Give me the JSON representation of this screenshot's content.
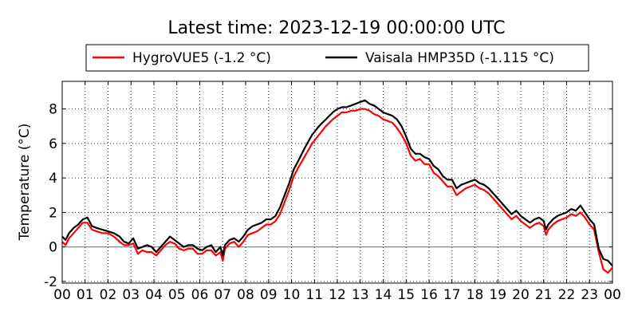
{
  "chart_data": {
    "type": "line",
    "title": "Latest time: 2023-12-19 00:00:00 UTC",
    "xlabel": "",
    "ylabel": "Temperature (°C)",
    "xlim": [
      0,
      24
    ],
    "ylim": [
      -2.1,
      9.6
    ],
    "yticks": [
      -2,
      0,
      2,
      4,
      6,
      8
    ],
    "xtick_labels": [
      "00",
      "01",
      "02",
      "03",
      "04",
      "05",
      "06",
      "07",
      "08",
      "09",
      "10",
      "11",
      "12",
      "13",
      "14",
      "15",
      "16",
      "17",
      "18",
      "19",
      "20",
      "21",
      "22",
      "23",
      "00"
    ],
    "grid": true,
    "zero_line": true,
    "legend_position": "top-center",
    "series": [
      {
        "name": "HygroVUE5 (-1.2 °C)",
        "color": "#ff0000",
        "x": [
          0,
          0.15,
          0.3,
          0.5,
          0.7,
          0.9,
          1.1,
          1.3,
          1.5,
          1.75,
          2.0,
          2.25,
          2.5,
          2.7,
          2.9,
          3.1,
          3.3,
          3.5,
          3.7,
          3.9,
          4.1,
          4.3,
          4.5,
          4.7,
          4.9,
          5.1,
          5.3,
          5.5,
          5.7,
          5.9,
          6.1,
          6.3,
          6.5,
          6.7,
          6.9,
          7.0,
          7.1,
          7.3,
          7.5,
          7.7,
          7.9,
          8.1,
          8.3,
          8.5,
          8.7,
          8.9,
          9.1,
          9.3,
          9.5,
          9.7,
          9.9,
          10.1,
          10.3,
          10.6,
          10.9,
          11.2,
          11.5,
          11.8,
          12.0,
          12.2,
          12.4,
          12.6,
          12.8,
          13.0,
          13.2,
          13.4,
          13.6,
          13.8,
          14.0,
          14.2,
          14.4,
          14.6,
          14.8,
          15.0,
          15.2,
          15.4,
          15.6,
          15.8,
          16.0,
          16.2,
          16.4,
          16.6,
          16.8,
          17.0,
          17.2,
          17.4,
          17.6,
          17.8,
          18.0,
          18.2,
          18.4,
          18.6,
          18.8,
          19.0,
          19.2,
          19.4,
          19.6,
          19.8,
          20.0,
          20.2,
          20.4,
          20.6,
          20.8,
          21.0,
          21.1,
          21.2,
          21.4,
          21.6,
          21.8,
          22.0,
          22.2,
          22.4,
          22.6,
          22.8,
          23.0,
          23.2,
          23.4,
          23.6,
          23.8,
          24.0
        ],
        "values": [
          0.3,
          0.1,
          0.5,
          0.8,
          1.1,
          1.4,
          1.4,
          1.0,
          0.9,
          0.8,
          0.8,
          0.6,
          0.3,
          0.1,
          0.1,
          0.2,
          -0.4,
          -0.2,
          -0.3,
          -0.3,
          -0.5,
          -0.2,
          0.1,
          0.3,
          0.2,
          -0.1,
          -0.2,
          -0.1,
          -0.1,
          -0.4,
          -0.4,
          -0.2,
          -0.2,
          -0.5,
          -0.3,
          -0.8,
          -0.1,
          0.2,
          0.3,
          0.0,
          0.3,
          0.7,
          0.8,
          0.9,
          1.1,
          1.3,
          1.3,
          1.5,
          1.9,
          2.6,
          3.3,
          4.1,
          4.6,
          5.3,
          6.0,
          6.5,
          7.0,
          7.4,
          7.6,
          7.8,
          7.8,
          7.9,
          7.9,
          8.0,
          8.0,
          7.9,
          7.7,
          7.6,
          7.4,
          7.3,
          7.2,
          6.9,
          6.5,
          6.0,
          5.3,
          5.0,
          5.1,
          4.8,
          4.8,
          4.3,
          4.1,
          3.8,
          3.5,
          3.5,
          3.0,
          3.2,
          3.4,
          3.5,
          3.6,
          3.4,
          3.3,
          3.1,
          2.8,
          2.5,
          2.2,
          1.9,
          1.6,
          1.8,
          1.5,
          1.3,
          1.1,
          1.3,
          1.4,
          1.2,
          0.7,
          1.0,
          1.3,
          1.5,
          1.6,
          1.7,
          1.9,
          1.8,
          2.0,
          1.7,
          1.3,
          1.0,
          -0.3,
          -1.3,
          -1.5,
          -1.2
        ]
      },
      {
        "name": "Vaisala HMP35D (-1.115 °C)",
        "color": "#000000",
        "x": [
          0,
          0.15,
          0.3,
          0.5,
          0.7,
          0.9,
          1.1,
          1.3,
          1.5,
          1.75,
          2.0,
          2.25,
          2.5,
          2.7,
          2.9,
          3.1,
          3.3,
          3.5,
          3.7,
          3.9,
          4.1,
          4.3,
          4.5,
          4.7,
          4.9,
          5.1,
          5.3,
          5.5,
          5.7,
          5.9,
          6.1,
          6.3,
          6.5,
          6.7,
          6.9,
          7.0,
          7.1,
          7.3,
          7.5,
          7.7,
          7.9,
          8.1,
          8.3,
          8.5,
          8.7,
          8.9,
          9.1,
          9.3,
          9.5,
          9.7,
          9.9,
          10.1,
          10.3,
          10.6,
          10.9,
          11.2,
          11.5,
          11.8,
          12.0,
          12.2,
          12.4,
          12.6,
          12.8,
          13.0,
          13.2,
          13.4,
          13.6,
          13.8,
          14.0,
          14.2,
          14.4,
          14.6,
          14.8,
          15.0,
          15.2,
          15.4,
          15.6,
          15.8,
          16.0,
          16.2,
          16.4,
          16.6,
          16.8,
          17.0,
          17.2,
          17.4,
          17.6,
          17.8,
          18.0,
          18.2,
          18.4,
          18.6,
          18.8,
          19.0,
          19.2,
          19.4,
          19.6,
          19.8,
          20.0,
          20.2,
          20.4,
          20.6,
          20.8,
          21.0,
          21.1,
          21.2,
          21.4,
          21.6,
          21.8,
          22.0,
          22.2,
          22.4,
          22.6,
          22.8,
          23.0,
          23.2,
          23.4,
          23.6,
          23.8,
          24.0
        ],
        "values": [
          0.6,
          0.4,
          0.8,
          1.1,
          1.3,
          1.6,
          1.7,
          1.2,
          1.1,
          1.0,
          0.9,
          0.8,
          0.6,
          0.3,
          0.2,
          0.5,
          -0.1,
          0.0,
          0.1,
          0.0,
          -0.3,
          0.0,
          0.3,
          0.6,
          0.4,
          0.2,
          0.0,
          0.1,
          0.1,
          -0.1,
          -0.2,
          0.0,
          0.1,
          -0.3,
          0.0,
          -0.5,
          0.1,
          0.4,
          0.5,
          0.3,
          0.6,
          1.0,
          1.2,
          1.3,
          1.4,
          1.6,
          1.6,
          1.8,
          2.3,
          3.0,
          3.7,
          4.5,
          5.0,
          5.8,
          6.5,
          7.0,
          7.4,
          7.8,
          8.0,
          8.1,
          8.1,
          8.2,
          8.3,
          8.4,
          8.5,
          8.3,
          8.2,
          8.0,
          7.8,
          7.7,
          7.6,
          7.4,
          7.0,
          6.4,
          5.7,
          5.4,
          5.4,
          5.2,
          5.1,
          4.7,
          4.5,
          4.1,
          3.9,
          3.9,
          3.4,
          3.6,
          3.7,
          3.8,
          3.9,
          3.7,
          3.6,
          3.4,
          3.1,
          2.8,
          2.5,
          2.2,
          1.9,
          2.1,
          1.8,
          1.6,
          1.4,
          1.6,
          1.7,
          1.5,
          1.0,
          1.3,
          1.6,
          1.8,
          1.9,
          2.0,
          2.2,
          2.1,
          2.4,
          2.0,
          1.6,
          1.3,
          -0.1,
          -0.7,
          -0.8,
          -1.1
        ]
      }
    ]
  }
}
